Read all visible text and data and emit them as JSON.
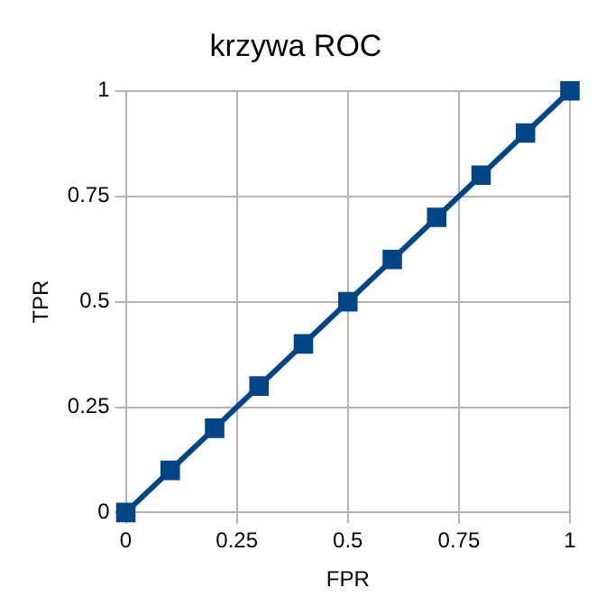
{
  "chart_data": {
    "type": "line",
    "title": "krzywa ROC",
    "xlabel": "FPR",
    "ylabel": "TPR",
    "x": [
      0,
      0.1,
      0.2,
      0.3,
      0.4,
      0.5,
      0.6,
      0.7,
      0.8,
      0.9,
      1
    ],
    "series": [
      {
        "color": "#004586",
        "values": [
          0,
          0.1,
          0.2,
          0.3,
          0.4,
          0.5,
          0.6,
          0.7,
          0.8,
          0.9,
          1
        ]
      }
    ],
    "xlim": [
      0,
      1
    ],
    "ylim": [
      0,
      1
    ],
    "xticks": [
      0,
      0.25,
      0.5,
      0.75,
      1
    ],
    "yticks": [
      0,
      0.25,
      0.5,
      0.75,
      1
    ],
    "grid": true,
    "marker": "square",
    "line_style": "solid",
    "legend": false
  }
}
